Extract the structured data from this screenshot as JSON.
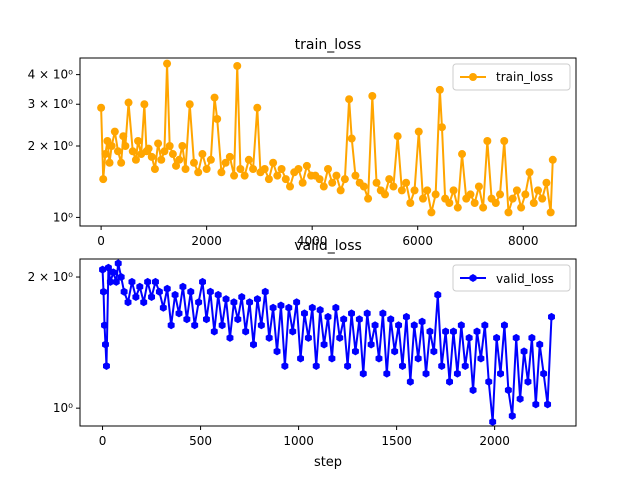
{
  "chart_data": [
    {
      "type": "line",
      "title": "train_loss",
      "xlabel": "",
      "ylabel": "",
      "yscale": "log",
      "xlim": [
        -400,
        9000
      ],
      "ylim": [
        0.92,
        4.7
      ],
      "xticks": [
        0,
        2000,
        4000,
        6000,
        8000
      ],
      "xtick_labels": [
        "0",
        "2000",
        "4000",
        "6000",
        "8000"
      ],
      "yticks": [
        1,
        2,
        3,
        4
      ],
      "ytick_labels": [
        "10⁰",
        "2 × 10⁰",
        "3 × 10⁰",
        "4 × 10⁰"
      ],
      "legend_position": "upper right",
      "grid": false,
      "series": [
        {
          "name": "train_loss",
          "color": "#FFA500",
          "marker": "circle",
          "x": [
            0,
            40,
            80,
            120,
            160,
            200,
            260,
            320,
            380,
            420,
            460,
            520,
            600,
            660,
            700,
            760,
            820,
            860,
            900,
            960,
            1020,
            1080,
            1140,
            1200,
            1250,
            1300,
            1360,
            1420,
            1480,
            1540,
            1600,
            1680,
            1760,
            1840,
            1920,
            2000,
            2080,
            2150,
            2200,
            2280,
            2360,
            2440,
            2520,
            2580,
            2640,
            2720,
            2800,
            2880,
            2960,
            3020,
            3100,
            3180,
            3260,
            3340,
            3420,
            3500,
            3580,
            3660,
            3740,
            3820,
            3900,
            3980,
            4060,
            4140,
            4220,
            4300,
            4380,
            4460,
            4540,
            4620,
            4700,
            4750,
            4820,
            4900,
            4980,
            5060,
            5140,
            5220,
            5300,
            5380,
            5460,
            5540,
            5620,
            5700,
            5780,
            5860,
            5940,
            6020,
            6100,
            6180,
            6260,
            6340,
            6420,
            6460,
            6520,
            6600,
            6680,
            6760,
            6840,
            6920,
            7000,
            7080,
            7160,
            7240,
            7320,
            7400,
            7480,
            7560,
            7640,
            7720,
            7800,
            7880,
            7960,
            8040,
            8120,
            8200,
            8280,
            8360,
            8440,
            8520,
            8560
          ],
          "y": [
            2.9,
            1.45,
            1.85,
            2.1,
            1.7,
            2.0,
            2.3,
            1.9,
            1.7,
            2.2,
            2.0,
            3.05,
            1.9,
            1.75,
            2.1,
            1.85,
            3.0,
            1.9,
            1.95,
            1.8,
            1.6,
            2.05,
            1.75,
            1.9,
            4.45,
            2.0,
            1.85,
            1.65,
            1.75,
            2.0,
            1.6,
            3.0,
            1.7,
            1.55,
            1.85,
            1.6,
            1.75,
            3.2,
            2.6,
            1.55,
            1.7,
            1.8,
            1.5,
            4.35,
            1.6,
            1.5,
            1.75,
            1.6,
            2.9,
            1.55,
            1.6,
            1.45,
            1.7,
            1.5,
            1.6,
            1.45,
            1.35,
            1.55,
            1.6,
            1.4,
            1.65,
            1.5,
            1.5,
            1.45,
            1.35,
            1.6,
            1.4,
            1.5,
            1.3,
            1.45,
            3.15,
            2.15,
            1.5,
            1.4,
            1.35,
            1.2,
            3.25,
            1.4,
            1.3,
            1.25,
            1.45,
            1.35,
            2.2,
            1.3,
            1.4,
            1.15,
            1.3,
            2.3,
            1.2,
            1.3,
            1.05,
            1.25,
            3.45,
            2.4,
            1.2,
            1.15,
            1.3,
            1.1,
            1.85,
            1.2,
            1.25,
            1.15,
            1.35,
            1.1,
            2.1,
            1.2,
            1.15,
            1.25,
            2.1,
            1.05,
            1.2,
            1.3,
            1.1,
            1.25,
            1.55,
            1.15,
            1.3,
            1.2,
            1.4,
            1.05,
            1.75
          ]
        }
      ]
    },
    {
      "type": "line",
      "title": "valid_loss",
      "xlabel": "step",
      "ylabel": "",
      "yscale": "log",
      "xlim": [
        -115,
        2415
      ],
      "ylim": [
        0.91,
        2.2
      ],
      "xticks": [
        0,
        500,
        1000,
        1500,
        2000
      ],
      "xtick_labels": [
        "0",
        "500",
        "1000",
        "1500",
        "2000"
      ],
      "yticks": [
        1,
        2
      ],
      "ytick_labels": [
        "10⁰",
        "2 × 10⁰"
      ],
      "legend_position": "upper right",
      "grid": false,
      "series": [
        {
          "name": "valid_loss",
          "color": "#0000FF",
          "marker": "hexagon",
          "x": [
            0,
            5,
            10,
            15,
            20,
            30,
            40,
            55,
            70,
            80,
            95,
            110,
            130,
            150,
            170,
            190,
            210,
            230,
            250,
            270,
            290,
            310,
            330,
            350,
            370,
            390,
            410,
            430,
            450,
            470,
            490,
            510,
            530,
            550,
            570,
            590,
            610,
            630,
            650,
            670,
            690,
            710,
            730,
            750,
            770,
            790,
            810,
            830,
            850,
            870,
            890,
            910,
            930,
            950,
            970,
            990,
            1010,
            1030,
            1050,
            1070,
            1090,
            1110,
            1130,
            1150,
            1170,
            1190,
            1210,
            1230,
            1250,
            1270,
            1290,
            1310,
            1330,
            1350,
            1370,
            1390,
            1410,
            1430,
            1450,
            1470,
            1490,
            1510,
            1530,
            1550,
            1570,
            1590,
            1610,
            1630,
            1650,
            1670,
            1690,
            1710,
            1730,
            1750,
            1770,
            1790,
            1810,
            1830,
            1850,
            1870,
            1890,
            1910,
            1930,
            1950,
            1970,
            1990,
            2010,
            2030,
            2050,
            2070,
            2090,
            2110,
            2130,
            2150,
            2170,
            2190,
            2210,
            2230,
            2250,
            2270,
            2290
          ],
          "y": [
            2.08,
            1.85,
            1.55,
            1.4,
            1.25,
            2.1,
            1.95,
            2.05,
            1.95,
            2.15,
            2.0,
            1.85,
            1.75,
            1.95,
            1.8,
            1.9,
            1.75,
            1.95,
            1.8,
            1.95,
            1.85,
            1.7,
            1.88,
            1.55,
            1.82,
            1.65,
            1.9,
            1.6,
            1.85,
            1.55,
            1.75,
            1.95,
            1.6,
            1.85,
            1.5,
            1.82,
            1.55,
            1.78,
            1.45,
            1.75,
            1.6,
            1.8,
            1.5,
            1.75,
            1.4,
            1.78,
            1.55,
            1.85,
            1.45,
            1.7,
            1.35,
            1.72,
            1.25,
            1.7,
            1.5,
            1.75,
            1.3,
            1.65,
            1.45,
            1.7,
            1.25,
            1.68,
            1.4,
            1.62,
            1.3,
            1.7,
            1.45,
            1.6,
            1.25,
            1.65,
            1.35,
            1.6,
            1.2,
            1.65,
            1.4,
            1.55,
            1.3,
            1.65,
            1.2,
            1.6,
            1.35,
            1.55,
            1.25,
            1.62,
            1.15,
            1.55,
            1.3,
            1.58,
            1.2,
            1.5,
            1.35,
            1.82,
            1.25,
            1.5,
            1.15,
            1.5,
            1.2,
            1.55,
            1.25,
            1.45,
            1.1,
            1.5,
            1.3,
            1.55,
            1.15,
            0.93,
            1.45,
            1.2,
            1.55,
            1.1,
            0.96,
            1.45,
            1.05,
            1.35,
            1.15,
            1.45,
            1.02,
            1.4,
            1.2,
            1.02,
            1.62
          ]
        }
      ]
    }
  ]
}
